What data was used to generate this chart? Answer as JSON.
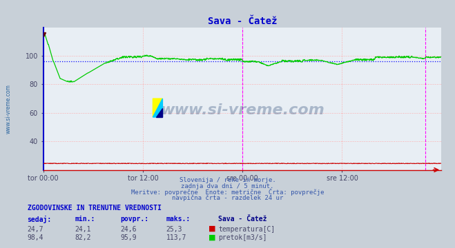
{
  "title": "Sava - Čatež",
  "title_color": "#0000cc",
  "bg_color": "#c8d0d8",
  "plot_bg_color": "#e8eef4",
  "grid_color": "#ffaaaa",
  "xlabel_ticks": [
    "tor 00:00",
    "tor 12:00",
    "sre 00:00",
    "sre 12:00"
  ],
  "xlabel_ticks_pos": [
    0,
    288,
    576,
    864
  ],
  "total_points": 1152,
  "ylim": [
    20,
    120
  ],
  "yticks": [
    40,
    60,
    80,
    100
  ],
  "flow_color": "#00cc00",
  "temp_color": "#cc0000",
  "avg_flow": 95.9,
  "avg_line_color": "#0000ff",
  "vline_color": "#ff00ff",
  "vline_pos": [
    576,
    1104
  ],
  "watermark_text": "www.si-vreme.com",
  "watermark_color": "#1a3a6a",
  "sidebar_text": "www.si-vreme.com",
  "sidebar_color": "#1a5a9a",
  "bottom_text1": "Slovenija / reke in morje.",
  "bottom_text2": "zadnja dva dni / 5 minut.",
  "bottom_text3": "Meritve: povprečne  Enote: metrične  Črta: povprečje",
  "bottom_text4": "navpična črta - razdelek 24 ur",
  "table_title": "ZGODOVINSKE IN TRENUTNE VREDNOSTI",
  "col_headers": [
    "sedaj:",
    "min.:",
    "povpr.:",
    "maks.:"
  ],
  "col_header_color": "#0000cc",
  "row1_vals": [
    "24,7",
    "24,1",
    "24,6",
    "25,3"
  ],
  "row2_vals": [
    "98,4",
    "82,2",
    "95,9",
    "113,7"
  ],
  "row_label1": "Sava - Čatež",
  "legend1_label": "temperatura[C]",
  "legend2_label": "pretok[m3/s]",
  "val_color": "#444466",
  "left_spine_color": "#0000cc",
  "bottom_spine_color": "#cc0000"
}
